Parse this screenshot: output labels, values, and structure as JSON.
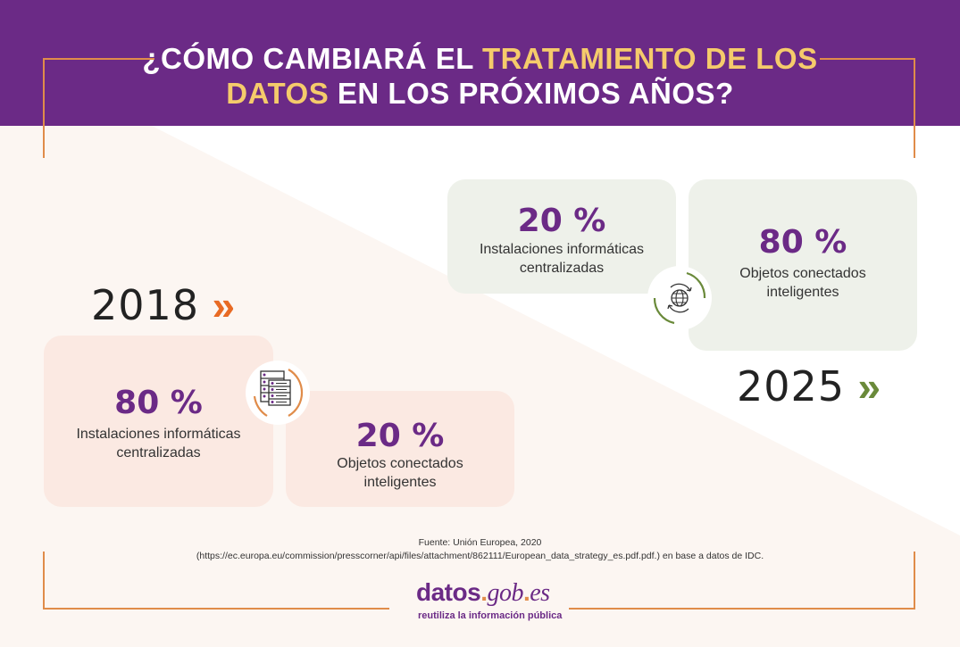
{
  "header": {
    "title_part1": "¿CÓMO CAMBIARÁ EL ",
    "title_highlight1": "TRATAMIENTO DE LOS",
    "title_highlight2": "DATOS",
    "title_part2": " EN LOS PRÓXIMOS AÑOS?"
  },
  "year_2018": {
    "year": "2018",
    "chevron": "»",
    "centralized": {
      "percent": "80 %",
      "label_line1": "Instalaciones informáticas",
      "label_line2": "centralizadas"
    },
    "connected": {
      "percent": "20 %",
      "label_line1": "Objetos conectados",
      "label_line2": "inteligentes"
    }
  },
  "year_2025": {
    "year": "2025",
    "chevron": "»",
    "centralized": {
      "percent": "20 %",
      "label_line1": "Instalaciones informáticas",
      "label_line2": "centralizadas"
    },
    "connected": {
      "percent": "80 %",
      "label_line1": "Objetos conectados",
      "label_line2": "inteligentes"
    }
  },
  "icons": {
    "icon_2018": "server-icon",
    "icon_2025": "globe-sync-icon"
  },
  "source": {
    "line1": "Fuente: Unión Europea, 2020",
    "line2": "(https://ec.europa.eu/commission/presscorner/api/files/attachment/862111/European_data_strategy_es.pdf.pdf.) en base a datos de IDC."
  },
  "logo": {
    "part1": "datos",
    "dot1": ".",
    "part2": "gob",
    "dot2": ".",
    "part3": "es",
    "tagline": "reutiliza la información pública"
  },
  "colors": {
    "purple": "#6b2a86",
    "yellow": "#f5cb6b",
    "orange": "#e08c4a",
    "green": "#6a8a3a",
    "card_2018": "#fbe9e2",
    "card_2025": "#eef1ea",
    "background_diagonal": "#fcf6f2"
  }
}
